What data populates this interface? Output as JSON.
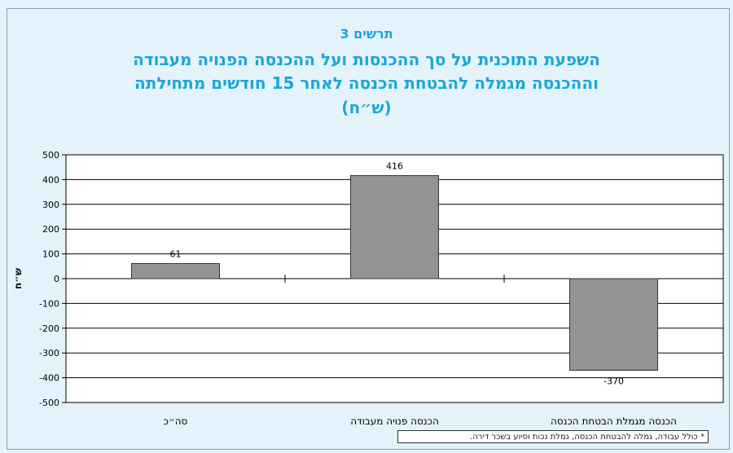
{
  "chart_data": {
    "type": "bar",
    "label": "תרשים 3",
    "title_lines": [
      "השפעת התוכנית על סך ההכנסות ועל ההכנסה הפנויה מעבודה",
      "וההכנסה מגמלה להבטחת הכנסה לאחר 15 חודשים מתחילתה",
      "(ש״ח)"
    ],
    "ylabel": "ש״ח",
    "ylim": [
      -500,
      500
    ],
    "yticks": [
      500,
      400,
      300,
      200,
      100,
      0,
      -100,
      -200,
      -300,
      -400,
      -500
    ],
    "grid": true,
    "categories": [
      "סה״כ",
      "הכנסה פנויה מעבודה",
      "הכנסה מגמלת הבטחת הכנסה"
    ],
    "values": [
      61,
      416,
      -370
    ],
    "data_labels": [
      "61",
      "416",
      "-370"
    ],
    "bar_color": "#939393",
    "footnote": "* כולל עבודה, גמלה להבטחת הכנסה, גמלת נכות וסיוע בשכר דירה."
  },
  "colors": {
    "title": "#1aa6d9",
    "background": "#e4f3fb",
    "plot_bg": "#ffffff"
  }
}
